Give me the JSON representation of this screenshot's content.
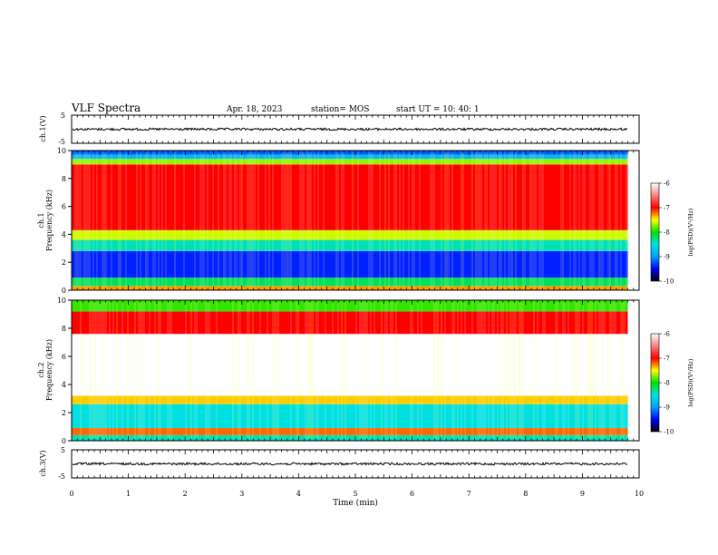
{
  "header": {
    "title": "VLF Spectra",
    "date": "Apr. 18, 2023",
    "station": "station= MOS",
    "start": "start  UT =   10: 40: 1"
  },
  "chart_data": [
    {
      "type": "line",
      "panel": "ch1-waveform",
      "ylabel": "ch.1(V)",
      "ylim": [
        -5,
        5
      ],
      "yticks": [
        -5,
        5
      ],
      "x_range_min": [
        0,
        9.8
      ],
      "baseline_value": 0
    },
    {
      "type": "heatmap",
      "panel": "ch1-spectrogram",
      "ylabel_line1": "ch.1",
      "ylabel_line2": "Frequency (kHz)",
      "ylim": [
        0,
        10
      ],
      "yticks": [
        0,
        2,
        4,
        6,
        8,
        10
      ],
      "x_range_min": [
        0,
        9.8
      ],
      "bands_khz": [
        {
          "from": 0.0,
          "to": 0.3,
          "level": -7.3
        },
        {
          "from": 0.3,
          "to": 0.9,
          "level": -8.2
        },
        {
          "from": 0.9,
          "to": 2.8,
          "level": -9.4
        },
        {
          "from": 2.8,
          "to": 3.6,
          "level": -8.4
        },
        {
          "from": 3.6,
          "to": 4.3,
          "level": -7.6
        },
        {
          "from": 4.3,
          "to": 9.0,
          "level": -7.0
        },
        {
          "from": 9.0,
          "to": 9.4,
          "level": -7.7
        },
        {
          "from": 9.4,
          "to": 9.7,
          "level": -8.8
        },
        {
          "from": 9.7,
          "to": 10.0,
          "level": -9.2
        }
      ]
    },
    {
      "type": "heatmap",
      "panel": "ch2-spectrogram",
      "ylabel_line1": "ch.2",
      "ylabel_line2": "Frequency (kHz)",
      "ylim": [
        0,
        10
      ],
      "yticks": [
        0,
        2,
        4,
        6,
        8,
        10
      ],
      "x_range_min": [
        0,
        9.8
      ],
      "bands_khz": [
        {
          "from": 0.0,
          "to": 0.4,
          "level": -8.4
        },
        {
          "from": 0.4,
          "to": 0.9,
          "level": -7.2
        },
        {
          "from": 0.9,
          "to": 2.6,
          "level": -8.5
        },
        {
          "from": 2.6,
          "to": 3.2,
          "level": -7.4
        },
        {
          "from": 3.2,
          "to": 7.6,
          "level": -6.0
        },
        {
          "from": 7.6,
          "to": 9.2,
          "level": -7.0
        },
        {
          "from": 9.2,
          "to": 10.0,
          "level": -7.9
        }
      ]
    },
    {
      "type": "line",
      "panel": "ch3-waveform",
      "ylabel": "ch.3(V)",
      "ylim": [
        -5,
        5
      ],
      "yticks": [
        -5,
        5
      ],
      "x_range_min": [
        0,
        9.8
      ],
      "baseline_value": 0
    }
  ],
  "xaxis": {
    "label": "Time  (min)",
    "xlim": [
      0,
      10
    ],
    "ticks": [
      "0",
      "1",
      "2",
      "3",
      "4",
      "5",
      "6",
      "7",
      "8",
      "9",
      "10"
    ]
  },
  "colorbar": {
    "label": "log(PSD)(V²/Hz)",
    "range": [
      -10,
      -6
    ],
    "ticks": [
      "-6",
      "-7",
      "-8",
      "-9",
      "-10"
    ],
    "stops": [
      {
        "level": -6.0,
        "color": "#ffffff"
      },
      {
        "level": -7.0,
        "color": "#ff0000"
      },
      {
        "level": -7.5,
        "color": "#ffff00"
      },
      {
        "level": -8.0,
        "color": "#00e000"
      },
      {
        "level": -8.5,
        "color": "#00e0e0"
      },
      {
        "level": -9.0,
        "color": "#00a0ff"
      },
      {
        "level": -9.5,
        "color": "#0000ff"
      },
      {
        "level": -10.0,
        "color": "#000000"
      }
    ]
  }
}
